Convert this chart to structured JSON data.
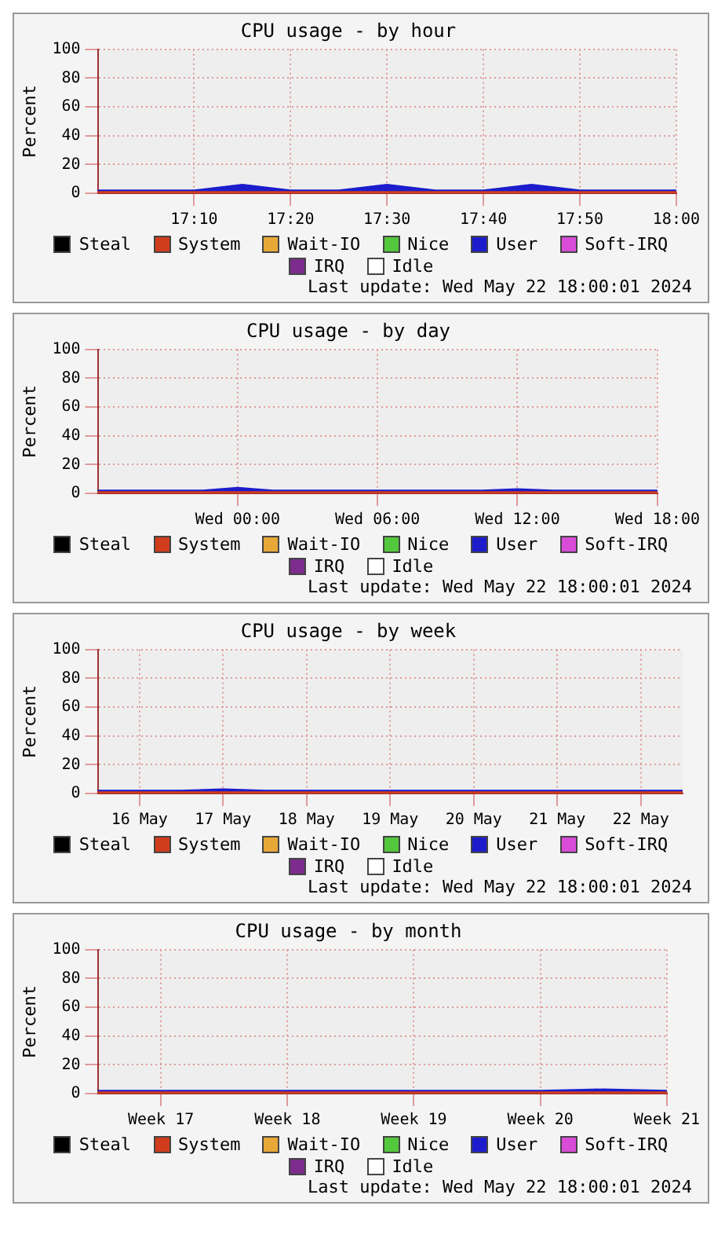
{
  "chart_data": [
    {
      "type": "area",
      "title": "CPU usage - by hour",
      "ylabel": "Percent",
      "stacked": true,
      "grid": true,
      "legend": "bottom",
      "marker": "none",
      "annotations": [
        "Last update: Wed May 22 18:00:01 2024"
      ],
      "categories": [
        null,
        null,
        "17:10",
        null,
        "17:20",
        null,
        "17:30",
        null,
        "17:40",
        null,
        "17:50",
        null,
        "18:00"
      ],
      "ylim": [
        0,
        100
      ],
      "yticks": [
        0,
        20,
        40,
        60,
        80,
        100
      ],
      "series": [
        {
          "name": "Steal",
          "color": "#000000",
          "values": [
            null,
            null,
            null,
            null,
            null,
            null,
            null,
            null,
            null,
            null,
            null,
            null,
            null
          ]
        },
        {
          "name": "System",
          "color": "#d03c1c",
          "values": [
            1,
            1,
            1,
            1,
            1,
            1,
            1,
            1,
            1,
            1,
            1,
            1,
            1
          ]
        },
        {
          "name": "Wait-IO",
          "color": "#e8a838",
          "values": [
            null,
            null,
            null,
            null,
            null,
            null,
            null,
            null,
            null,
            null,
            null,
            null,
            null
          ]
        },
        {
          "name": "Nice",
          "color": "#54c83c",
          "values": [
            null,
            null,
            null,
            null,
            null,
            null,
            null,
            null,
            null,
            null,
            null,
            null,
            null
          ]
        },
        {
          "name": "User",
          "color": "#1c1ccc",
          "values": [
            1,
            1,
            1,
            5,
            1,
            1,
            5,
            1,
            1,
            5,
            1,
            1,
            1
          ]
        },
        {
          "name": "Soft-IRQ",
          "color": "#d84cd8",
          "values": [
            null,
            null,
            null,
            null,
            null,
            null,
            null,
            null,
            null,
            null,
            null,
            null,
            null
          ]
        },
        {
          "name": "IRQ",
          "color": "#7c2c8c",
          "values": [
            null,
            null,
            null,
            null,
            null,
            null,
            null,
            null,
            null,
            null,
            null,
            null,
            null
          ]
        },
        {
          "name": "Idle",
          "color": "#ffffff",
          "values": [
            null,
            null,
            null,
            null,
            null,
            null,
            null,
            null,
            null,
            null,
            null,
            null,
            null
          ]
        }
      ]
    },
    {
      "type": "area",
      "title": "CPU usage - by day",
      "ylabel": "Percent",
      "stacked": true,
      "grid": true,
      "legend": "bottom",
      "marker": "none",
      "annotations": [
        "Last update: Wed May 22 18:00:01 2024"
      ],
      "categories": [
        null,
        null,
        null,
        null,
        "Wed 00:00",
        null,
        null,
        null,
        "Wed 06:00",
        null,
        null,
        null,
        "Wed 12:00",
        null,
        null,
        null,
        "Wed 18:00"
      ],
      "ylim": [
        0,
        100
      ],
      "yticks": [
        0,
        20,
        40,
        60,
        80,
        100
      ],
      "series": [
        {
          "name": "Steal",
          "color": "#000000",
          "values": [
            null,
            null,
            null,
            null,
            null,
            null,
            null,
            null,
            null,
            null,
            null,
            null,
            null,
            null,
            null,
            null,
            null
          ]
        },
        {
          "name": "System",
          "color": "#d03c1c",
          "values": [
            1,
            1,
            1,
            1,
            1,
            1,
            1,
            1,
            1,
            1,
            1,
            1,
            1,
            1,
            1,
            1,
            1
          ]
        },
        {
          "name": "Wait-IO",
          "color": "#e8a838",
          "values": [
            null,
            null,
            null,
            null,
            null,
            null,
            null,
            null,
            null,
            null,
            null,
            null,
            null,
            null,
            null,
            null,
            null
          ]
        },
        {
          "name": "Nice",
          "color": "#54c83c",
          "values": [
            null,
            null,
            null,
            null,
            null,
            null,
            null,
            null,
            null,
            null,
            null,
            null,
            null,
            null,
            null,
            null,
            null
          ]
        },
        {
          "name": "User",
          "color": "#1c1ccc",
          "values": [
            1,
            1,
            1,
            1,
            3,
            1,
            1,
            1,
            1,
            1,
            1,
            1,
            2,
            1,
            1,
            1,
            1
          ]
        },
        {
          "name": "Soft-IRQ",
          "color": "#d84cd8",
          "values": [
            null,
            null,
            null,
            null,
            null,
            null,
            null,
            null,
            null,
            null,
            null,
            null,
            null,
            null,
            null,
            null,
            null
          ]
        },
        {
          "name": "IRQ",
          "color": "#7c2c8c",
          "values": [
            null,
            null,
            null,
            null,
            null,
            null,
            null,
            null,
            null,
            null,
            null,
            null,
            null,
            null,
            null,
            null,
            null
          ]
        },
        {
          "name": "Idle",
          "color": "#ffffff",
          "values": [
            null,
            null,
            null,
            null,
            null,
            null,
            null,
            null,
            null,
            null,
            null,
            null,
            null,
            null,
            null,
            null,
            null
          ]
        }
      ]
    },
    {
      "type": "area",
      "title": "CPU usage - by week",
      "ylabel": "Percent",
      "stacked": true,
      "grid": true,
      "legend": "bottom",
      "marker": "none",
      "annotations": [
        "Last update: Wed May 22 18:00:01 2024"
      ],
      "categories": [
        null,
        "16 May",
        null,
        "17 May",
        null,
        "18 May",
        null,
        "19 May",
        null,
        "20 May",
        null,
        "21 May",
        null,
        "22 May",
        null
      ],
      "ylim": [
        0,
        100
      ],
      "yticks": [
        0,
        20,
        40,
        60,
        80,
        100
      ],
      "series": [
        {
          "name": "Steal",
          "color": "#000000",
          "values": [
            null,
            null,
            null,
            null,
            null,
            null,
            null,
            null,
            null,
            null,
            null,
            null,
            null,
            null,
            null
          ]
        },
        {
          "name": "System",
          "color": "#d03c1c",
          "values": [
            1,
            1,
            1,
            1,
            1,
            1,
            1,
            1,
            1,
            1,
            1,
            1,
            1,
            1,
            1
          ]
        },
        {
          "name": "Wait-IO",
          "color": "#e8a838",
          "values": [
            null,
            null,
            null,
            null,
            null,
            null,
            null,
            null,
            null,
            null,
            null,
            null,
            null,
            null,
            null
          ]
        },
        {
          "name": "Nice",
          "color": "#54c83c",
          "values": [
            null,
            null,
            null,
            null,
            null,
            null,
            null,
            null,
            null,
            null,
            null,
            null,
            null,
            null,
            null
          ]
        },
        {
          "name": "User",
          "color": "#1c1ccc",
          "values": [
            1,
            1,
            1,
            2,
            1,
            1,
            1,
            1,
            1,
            1,
            1,
            1,
            1,
            1,
            1
          ]
        },
        {
          "name": "Soft-IRQ",
          "color": "#d84cd8",
          "values": [
            null,
            null,
            null,
            null,
            null,
            null,
            null,
            null,
            null,
            null,
            null,
            null,
            null,
            null,
            null
          ]
        },
        {
          "name": "IRQ",
          "color": "#7c2c8c",
          "values": [
            null,
            null,
            null,
            null,
            null,
            null,
            null,
            null,
            null,
            null,
            null,
            null,
            null,
            null,
            null
          ]
        },
        {
          "name": "Idle",
          "color": "#ffffff",
          "values": [
            null,
            null,
            null,
            null,
            null,
            null,
            null,
            null,
            null,
            null,
            null,
            null,
            null,
            null,
            null
          ]
        }
      ]
    },
    {
      "type": "area",
      "title": "CPU usage - by month",
      "ylabel": "Percent",
      "stacked": true,
      "grid": true,
      "legend": "bottom",
      "marker": "none",
      "annotations": [
        "Last update: Wed May 22 18:00:01 2024"
      ],
      "categories": [
        null,
        "Week 17",
        null,
        "Week 18",
        null,
        "Week 19",
        null,
        "Week 20",
        null,
        "Week 21"
      ],
      "ylim": [
        0,
        100
      ],
      "yticks": [
        0,
        20,
        40,
        60,
        80,
        100
      ],
      "series": [
        {
          "name": "Steal",
          "color": "#000000",
          "values": [
            null,
            null,
            null,
            null,
            null,
            null,
            null,
            null,
            null,
            null
          ]
        },
        {
          "name": "System",
          "color": "#d03c1c",
          "values": [
            1,
            1,
            1,
            1,
            1,
            1,
            1,
            1,
            1,
            1
          ]
        },
        {
          "name": "Wait-IO",
          "color": "#e8a838",
          "values": [
            null,
            null,
            null,
            null,
            null,
            null,
            null,
            null,
            null,
            null
          ]
        },
        {
          "name": "Nice",
          "color": "#54c83c",
          "values": [
            null,
            null,
            null,
            null,
            null,
            null,
            null,
            null,
            null,
            null
          ]
        },
        {
          "name": "User",
          "color": "#1c1ccc",
          "values": [
            1,
            1,
            1,
            1,
            1,
            1,
            1,
            1,
            2,
            1
          ]
        },
        {
          "name": "Soft-IRQ",
          "color": "#d84cd8",
          "values": [
            null,
            null,
            null,
            null,
            null,
            null,
            null,
            null,
            null,
            null
          ]
        },
        {
          "name": "IRQ",
          "color": "#7c2c8c",
          "values": [
            null,
            null,
            null,
            null,
            null,
            null,
            null,
            null,
            null,
            null
          ]
        },
        {
          "name": "Idle",
          "color": "#ffffff",
          "values": [
            null,
            null,
            null,
            null,
            null,
            null,
            null,
            null,
            null,
            null
          ]
        }
      ]
    }
  ]
}
